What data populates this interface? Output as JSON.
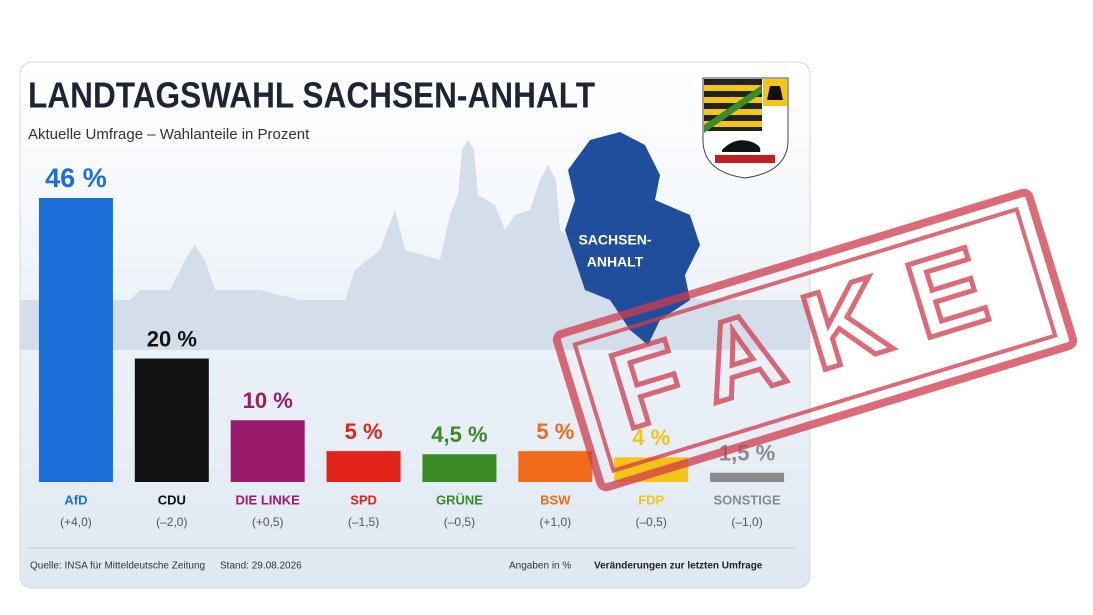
{
  "chart_data": {
    "type": "bar",
    "title": "LANDTAGSWAHL SACHSEN-ANHALT",
    "subtitle": "Aktuelle Umfrage – Wahlanteile in Prozent",
    "categories": [
      "AfD",
      "CDU",
      "DIE LINKE",
      "SPD",
      "GRÜNE",
      "BSW",
      "FDP",
      "SONSTIGE"
    ],
    "values": [
      46,
      20,
      10,
      5,
      4.5,
      5,
      4,
      1.5
    ],
    "value_labels": [
      "46 %",
      "20 %",
      "10 %",
      "5 %",
      "4,5 %",
      "5 %",
      "4 %",
      "1,5 %"
    ],
    "change_labels": [
      "(+4,0)",
      "(–2,0)",
      "(+0,5)",
      "(–1,5)",
      "(–0,5)",
      "(+1,0)",
      "(–0,5)",
      "(–1,0)"
    ],
    "colors": [
      "#1b6fd8",
      "#111111",
      "#9a1b6c",
      "#e2231a",
      "#3b8b28",
      "#f26b1c",
      "#f4c419",
      "#8a8a8a"
    ],
    "map_label": [
      "SACHSEN-",
      "ANHALT"
    ],
    "source": "Quelle: INSA für Mitteldeutsche Zeitung",
    "date": "Stand: 29.08.2026",
    "unit_note": "Angaben in %",
    "change_note": "Veränderungen zur letzten Umfrage",
    "stamp": "FAKE"
  }
}
